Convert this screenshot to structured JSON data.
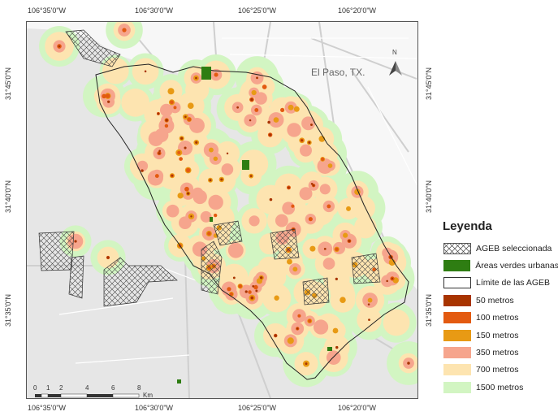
{
  "coords": {
    "top": [
      "106°35'0\"W",
      "106°30'0\"W",
      "106°25'0\"W",
      "106°20'0\"W"
    ],
    "bottom": [
      "106°35'0\"W",
      "106°30'0\"W",
      "106°25'0\"W",
      "106°20'0\"W"
    ],
    "left": [
      "31°45'0\"N",
      "31°40'0\"N",
      "31°35'0\"N"
    ],
    "right": [
      "31°45'0\"N",
      "31°40'0\"N",
      "31°35'0\"N"
    ]
  },
  "map": {
    "city_label": "El Paso, TX.",
    "north_label": "N",
    "scale_ticks": [
      "0",
      "1",
      "2",
      "4",
      "6",
      "8"
    ],
    "scale_unit": "Km"
  },
  "legend": {
    "title": "Leyenda",
    "items": [
      {
        "label": "AGEB seleccionada",
        "type": "hatch"
      },
      {
        "label": "Áreas verdes urbanas",
        "color": "#2e7d12"
      },
      {
        "label": "Límite de las AGEB",
        "type": "outline"
      },
      {
        "label": "50 metros",
        "color": "#a83400"
      },
      {
        "label": "100 metros",
        "color": "#e35a10"
      },
      {
        "label": "150 metros",
        "color": "#e89a14"
      },
      {
        "label": "350 metros",
        "color": "#f6a58d"
      },
      {
        "label": "700 metros",
        "color": "#fde4b0"
      },
      {
        "label": "1500 metros",
        "color": "#d2f5c2"
      }
    ]
  }
}
